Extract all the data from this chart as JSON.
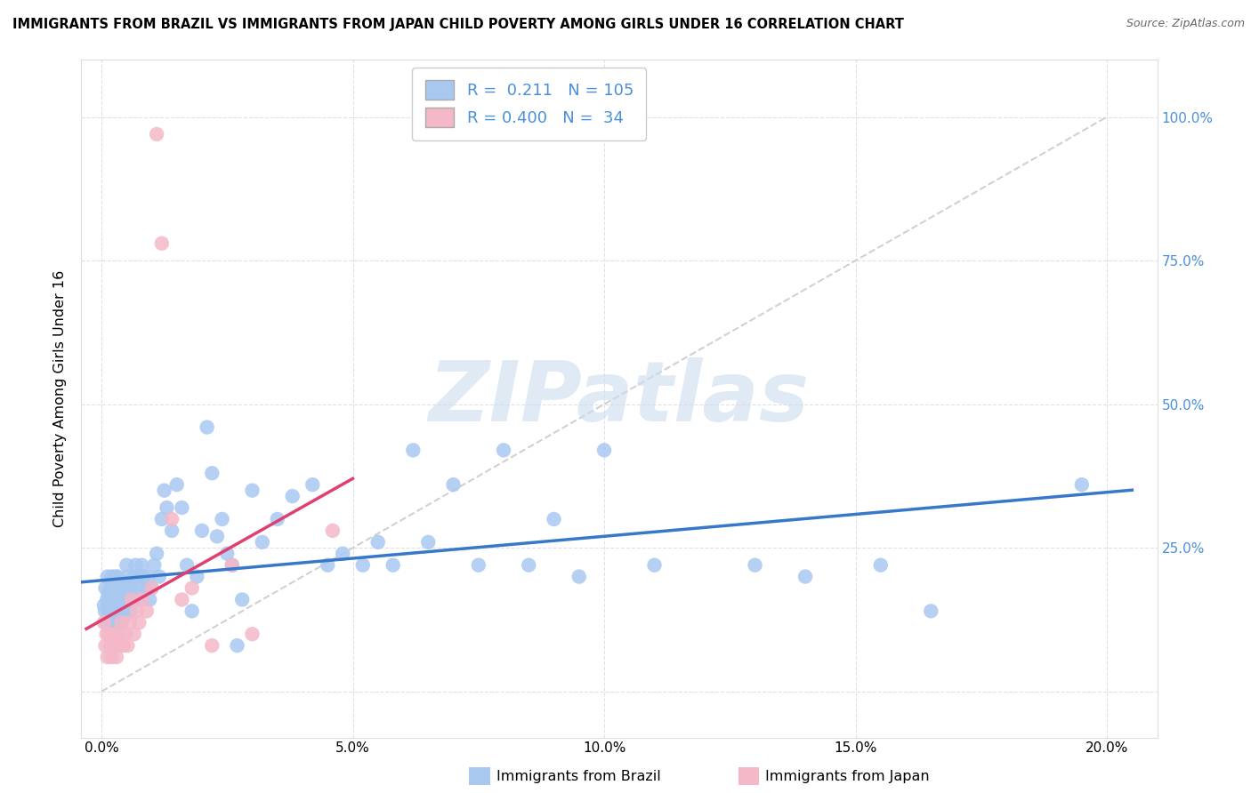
{
  "title": "IMMIGRANTS FROM BRAZIL VS IMMIGRANTS FROM JAPAN CHILD POVERTY AMONG GIRLS UNDER 16 CORRELATION CHART",
  "source": "Source: ZipAtlas.com",
  "ylabel": "Child Poverty Among Girls Under 16",
  "x_tick_labels": [
    "0.0%",
    "5.0%",
    "10.0%",
    "15.0%",
    "20.0%"
  ],
  "x_tick_vals": [
    0.0,
    5.0,
    10.0,
    15.0,
    20.0
  ],
  "y_tick_vals": [
    0,
    25,
    50,
    75,
    100
  ],
  "y_tick_labels_right": [
    "",
    "25.0%",
    "50.0%",
    "75.0%",
    "100.0%"
  ],
  "xlim": [
    -0.4,
    21.0
  ],
  "ylim": [
    -8,
    110
  ],
  "brazil_color": "#a8c8f0",
  "japan_color": "#f4b8c8",
  "brazil_trend_color": "#3878c8",
  "japan_trend_color": "#e04070",
  "ref_line_color": "#cccccc",
  "watermark": "ZIPatlas",
  "watermark_color": "#ccdcef",
  "legend_label_brazil": "Immigrants from Brazil",
  "legend_label_japan": "Immigrants from Japan",
  "brazil_R": 0.211,
  "brazil_N": 105,
  "japan_R": 0.4,
  "japan_N": 34,
  "brazil_x": [
    0.05,
    0.07,
    0.08,
    0.1,
    0.11,
    0.12,
    0.13,
    0.14,
    0.15,
    0.16,
    0.18,
    0.19,
    0.2,
    0.21,
    0.22,
    0.23,
    0.24,
    0.25,
    0.26,
    0.27,
    0.28,
    0.29,
    0.3,
    0.31,
    0.32,
    0.33,
    0.34,
    0.35,
    0.36,
    0.37,
    0.38,
    0.39,
    0.4,
    0.41,
    0.42,
    0.43,
    0.44,
    0.45,
    0.46,
    0.47,
    0.48,
    0.5,
    0.52,
    0.54,
    0.56,
    0.58,
    0.6,
    0.62,
    0.65,
    0.68,
    0.7,
    0.73,
    0.76,
    0.8,
    0.84,
    0.88,
    0.92,
    0.96,
    1.0,
    1.05,
    1.1,
    1.15,
    1.2,
    1.25,
    1.3,
    1.4,
    1.5,
    1.6,
    1.7,
    1.8,
    1.9,
    2.0,
    2.1,
    2.2,
    2.3,
    2.4,
    2.5,
    2.6,
    2.8,
    3.0,
    3.2,
    3.5,
    3.8,
    4.2,
    4.5,
    4.8,
    5.2,
    5.5,
    5.8,
    6.2,
    6.5,
    7.0,
    7.5,
    8.0,
    8.5,
    9.0,
    9.5,
    10.0,
    11.0,
    13.0,
    14.0,
    15.5,
    16.5,
    19.5,
    2.7
  ],
  "brazil_y": [
    15,
    14,
    18,
    12,
    16,
    20,
    14,
    17,
    15,
    13,
    18,
    12,
    16,
    20,
    18,
    14,
    16,
    15,
    18,
    12,
    20,
    16,
    18,
    14,
    20,
    16,
    12,
    18,
    14,
    16,
    15,
    18,
    17,
    15,
    19,
    14,
    16,
    18,
    13,
    15,
    17,
    22,
    20,
    18,
    16,
    14,
    18,
    16,
    20,
    22,
    16,
    20,
    18,
    22,
    20,
    18,
    20,
    16,
    18,
    22,
    24,
    20,
    30,
    35,
    32,
    28,
    36,
    32,
    22,
    14,
    20,
    28,
    46,
    38,
    27,
    30,
    24,
    22,
    16,
    35,
    26,
    30,
    34,
    36,
    22,
    24,
    22,
    26,
    22,
    42,
    26,
    36,
    22,
    42,
    22,
    30,
    20,
    42,
    22,
    22,
    20,
    22,
    14,
    36,
    8
  ],
  "japan_x": [
    0.05,
    0.08,
    0.1,
    0.12,
    0.15,
    0.18,
    0.2,
    0.22,
    0.25,
    0.28,
    0.3,
    0.33,
    0.36,
    0.4,
    0.44,
    0.48,
    0.52,
    0.56,
    0.6,
    0.65,
    0.7,
    0.75,
    0.8,
    0.9,
    1.0,
    1.1,
    1.2,
    1.4,
    1.6,
    1.8,
    2.2,
    2.6,
    3.0,
    4.6
  ],
  "japan_y": [
    12,
    8,
    10,
    6,
    10,
    8,
    6,
    10,
    8,
    10,
    6,
    8,
    10,
    12,
    8,
    10,
    8,
    12,
    16,
    10,
    14,
    12,
    16,
    14,
    18,
    97,
    78,
    30,
    16,
    18,
    8,
    22,
    10,
    28
  ]
}
